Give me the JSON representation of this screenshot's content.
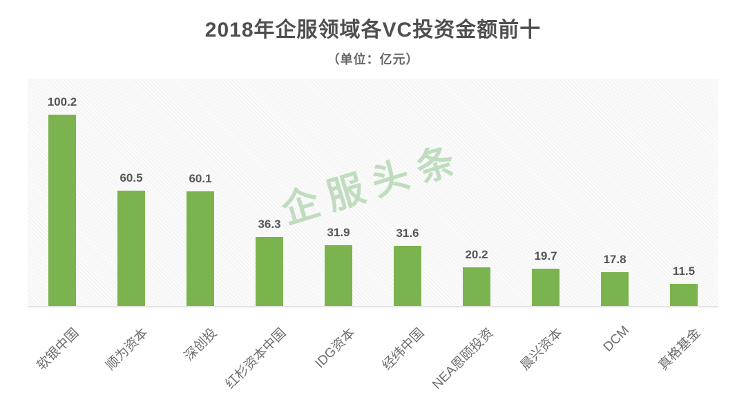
{
  "header": {
    "title": "2018年企服领域各VC投资金额前十",
    "subtitle": "（单位：亿元）"
  },
  "watermark": {
    "text": "企服头条",
    "color": "#7dba7a"
  },
  "chart_data": {
    "type": "bar",
    "title": "2018年企服领域各VC投资金额前十",
    "subtitle": "（单位：亿元）",
    "unit": "亿元",
    "categories": [
      "软银中国",
      "顺为资本",
      "深创投",
      "红杉资本中国",
      "IDG资本",
      "经纬中国",
      "NEA恩颐投资",
      "晨兴资本",
      "DCM",
      "真格基金"
    ],
    "values": [
      100.2,
      60.5,
      60.1,
      36.3,
      31.9,
      31.6,
      20.2,
      19.7,
      17.8,
      11.5
    ],
    "value_labels_shown": true,
    "bar_color": "#7BB44E",
    "value_label_color": "#555555",
    "category_label_color": "#6e6e6e",
    "category_label_rotation_deg": 45,
    "xlabel": "",
    "ylabel": "",
    "ylim": [
      0,
      120
    ],
    "grid": false,
    "legend": "none",
    "plot_background": "light-gray diagonal hatch"
  }
}
